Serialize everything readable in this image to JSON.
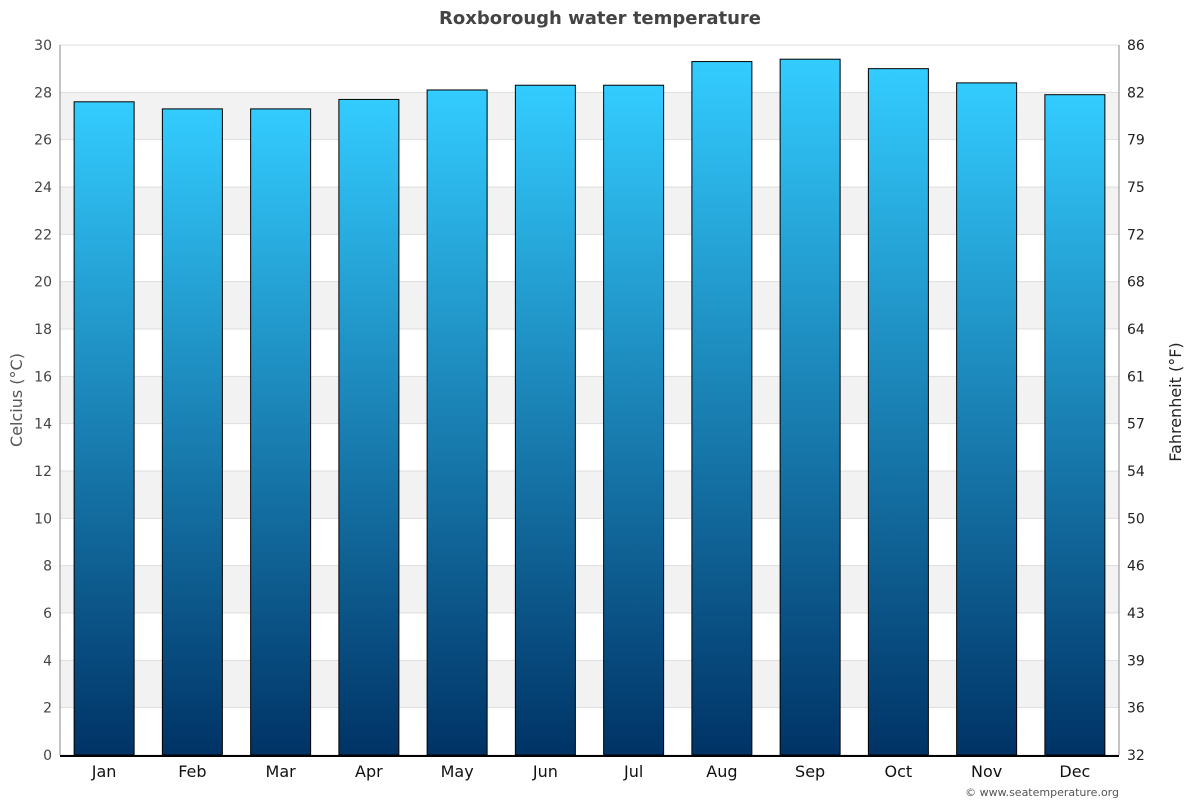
{
  "chart_data": {
    "type": "bar",
    "title": "Roxborough water temperature",
    "categories": [
      "Jan",
      "Feb",
      "Mar",
      "Apr",
      "May",
      "Jun",
      "Jul",
      "Aug",
      "Sep",
      "Oct",
      "Nov",
      "Dec"
    ],
    "values": [
      27.6,
      27.3,
      27.3,
      27.7,
      28.1,
      28.3,
      28.3,
      29.3,
      29.4,
      29.0,
      28.4,
      27.9
    ],
    "ylabel": "Celcius (°C)",
    "y2label": "Fahrenheit (°F)",
    "ylim": [
      0,
      30
    ],
    "yticks": [
      0,
      2,
      4,
      6,
      8,
      10,
      12,
      14,
      16,
      18,
      20,
      22,
      24,
      26,
      28,
      30
    ],
    "y2ticks": [
      "32",
      "36",
      "39",
      "43",
      "46",
      "50",
      "54",
      "57",
      "61",
      "64",
      "68",
      "72",
      "75",
      "79",
      "82",
      "86"
    ],
    "grid": true,
    "bar_gradient": [
      "#33ccff",
      "#003366"
    ],
    "band_color": "#f2f2f2"
  },
  "credit": "© www.seatemperature.org"
}
